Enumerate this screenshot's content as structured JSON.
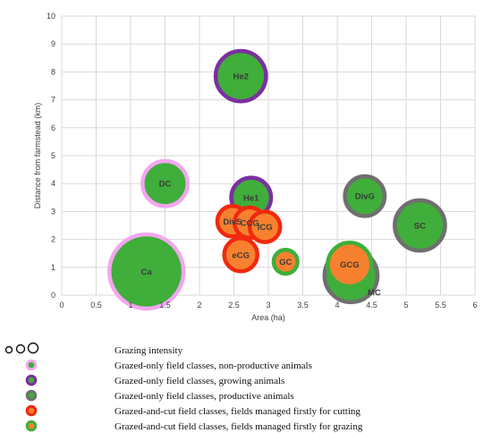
{
  "chart_data": {
    "type": "bubble",
    "xlabel": "Area (ha)",
    "ylabel": "Distance from farmstead (km)",
    "xlim": [
      0,
      6
    ],
    "ylim": [
      0,
      10
    ],
    "x_ticks": [
      "0",
      "0.5",
      "1",
      "1.5",
      "2",
      "2.5",
      "3",
      "3.5",
      "4",
      "4.5",
      "5",
      "5.5",
      "6"
    ],
    "y_ticks": [
      "0",
      "1",
      "2",
      "3",
      "4",
      "5",
      "6",
      "7",
      "8",
      "9",
      "10"
    ],
    "grid": true,
    "bubbles": [
      {
        "label": "Ca",
        "x": 1.23,
        "y": 0.85,
        "size": 5.6,
        "class": "non-productive"
      },
      {
        "label": "DC",
        "x": 1.5,
        "y": 4.0,
        "size": 3.4,
        "class": "non-productive"
      },
      {
        "label": "He2",
        "x": 2.6,
        "y": 7.85,
        "size": 3.8,
        "class": "growing"
      },
      {
        "label": "He1",
        "x": 2.75,
        "y": 3.5,
        "size": 3.0,
        "class": "growing"
      },
      {
        "label": "DivG",
        "x": 4.4,
        "y": 3.55,
        "size": 3.0,
        "class": "productive"
      },
      {
        "label": "SC",
        "x": 5.2,
        "y": 2.5,
        "size": 3.8,
        "class": "productive"
      },
      {
        "label": "MC",
        "x": 4.2,
        "y": 0.7,
        "size": 4.0,
        "class": "productive"
      },
      {
        "label": "GC",
        "x": 3.25,
        "y": 1.2,
        "size": 1.8,
        "class": "firstly-grazing"
      },
      {
        "label": "GCG",
        "x": 4.18,
        "y": 1.1,
        "size": 3.3,
        "class": "firstly-grazing"
      },
      {
        "label": "DivS",
        "x": 2.48,
        "y": 2.65,
        "size": 2.3,
        "class": "firstly-cutting"
      },
      {
        "label": "CCG",
        "x": 2.73,
        "y": 2.6,
        "size": 2.3,
        "class": "firstly-cutting"
      },
      {
        "label": "ICG",
        "x": 2.95,
        "y": 2.45,
        "size": 2.3,
        "class": "firstly-cutting"
      },
      {
        "label": "eCG",
        "x": 2.6,
        "y": 1.45,
        "size": 2.5,
        "class": "firstly-cutting"
      }
    ],
    "classes": {
      "non-productive": {
        "fill": "#3fae3a",
        "stroke": "#f3a6ef"
      },
      "growing": {
        "fill": "#3fae3a",
        "stroke": "#7b2fa0"
      },
      "productive": {
        "fill": "#3fae3a",
        "stroke": "#6f6f6f"
      },
      "firstly-cutting": {
        "fill": "#f7812f",
        "stroke": "#f0290f"
      },
      "firstly-grazing": {
        "fill": "#f7812f",
        "stroke": "#3fae3a"
      }
    }
  },
  "legend": {
    "items": [
      {
        "label": "Grazing intensity",
        "symbol": "circles"
      },
      {
        "label": "Grazed-only field classes, non-productive animals",
        "class": "non-productive"
      },
      {
        "label": "Grazed-only field classes, growing animals",
        "class": "growing"
      },
      {
        "label": "Grazed-only field classes, productive animals",
        "class": "productive"
      },
      {
        "label": "Grazed-and-cut field classes, fields managed firstly for cutting",
        "class": "firstly-cutting"
      },
      {
        "label": "Grazed-and-cut field classes, fields managed firstly for grazing",
        "class": "firstly-grazing"
      }
    ]
  }
}
